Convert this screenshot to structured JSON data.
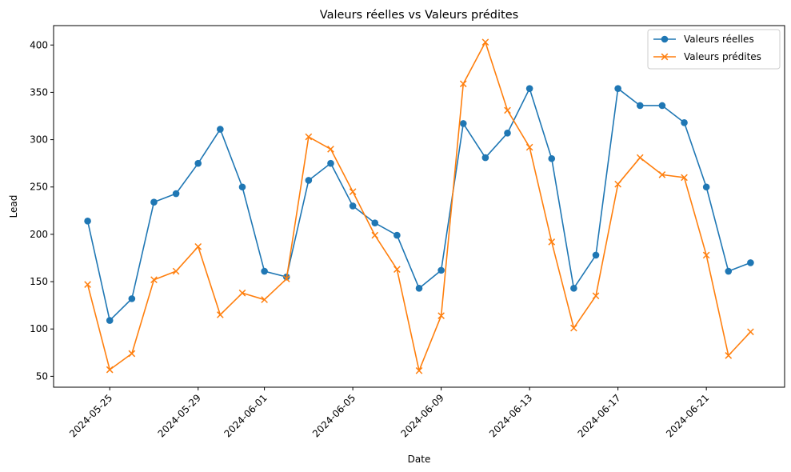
{
  "chart_data": {
    "type": "line",
    "title": "Valeurs réelles vs Valeurs prédites",
    "xlabel": "Date",
    "ylabel": "Lead",
    "x": [
      "2024-05-24",
      "2024-05-25",
      "2024-05-26",
      "2024-05-27",
      "2024-05-28",
      "2024-05-29",
      "2024-05-30",
      "2024-05-31",
      "2024-06-01",
      "2024-06-02",
      "2024-06-03",
      "2024-06-04",
      "2024-06-05",
      "2024-06-06",
      "2024-06-07",
      "2024-06-08",
      "2024-06-09",
      "2024-06-10",
      "2024-06-11",
      "2024-06-12",
      "2024-06-13",
      "2024-06-14",
      "2024-06-15",
      "2024-06-16",
      "2024-06-17",
      "2024-06-18",
      "2024-06-19",
      "2024-06-20",
      "2024-06-21",
      "2024-06-22",
      "2024-06-23"
    ],
    "series": [
      {
        "name": "Valeurs réelles",
        "color": "#1f77b4",
        "marker": "circle",
        "values": [
          214,
          109,
          132,
          234,
          243,
          275,
          311,
          250,
          161,
          155,
          257,
          275,
          230,
          212,
          199,
          143,
          162,
          317,
          281,
          307,
          354,
          280,
          143,
          178,
          354,
          336,
          336,
          318,
          250,
          161,
          170
        ]
      },
      {
        "name": "Valeurs prédites",
        "color": "#ff7f0e",
        "marker": "x",
        "values": [
          147,
          57,
          74,
          152,
          161,
          187,
          115,
          138,
          131,
          153,
          303,
          290,
          245,
          199,
          163,
          56,
          114,
          359,
          403,
          331,
          292,
          192,
          101,
          135,
          253,
          281,
          263,
          260,
          178,
          72,
          97
        ]
      }
    ],
    "xticks": [
      "2024-05-25",
      "2024-05-29",
      "2024-06-01",
      "2024-06-05",
      "2024-06-09",
      "2024-06-13",
      "2024-06-17",
      "2024-06-21"
    ],
    "xlim": [
      "2024-05-22T11:00",
      "2024-06-24T13:00"
    ],
    "yticks": [
      50,
      100,
      150,
      200,
      250,
      300,
      350,
      400
    ],
    "ylim": [
      38.5,
      420.5
    ],
    "legend": "top-right",
    "grid": false
  }
}
